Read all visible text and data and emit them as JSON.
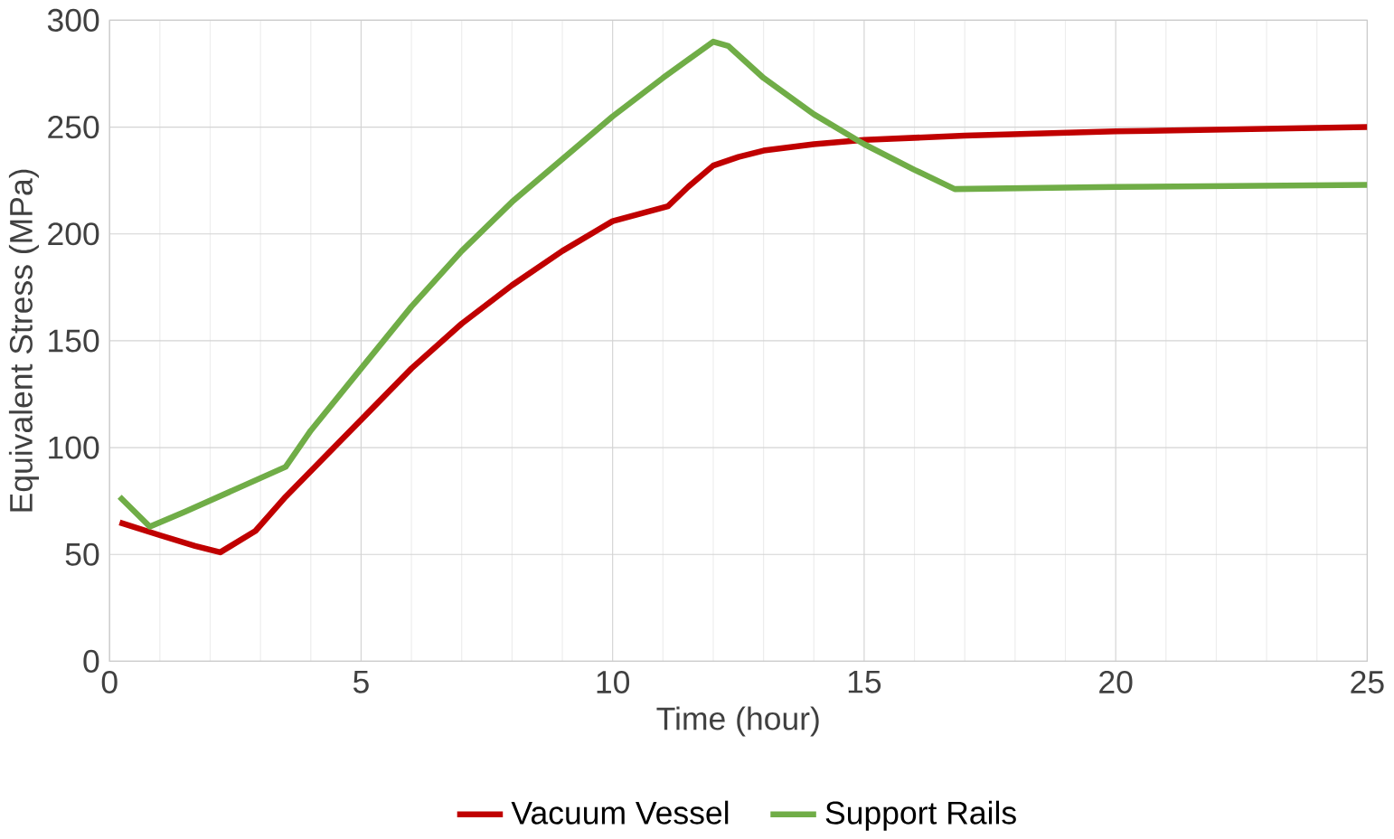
{
  "chart_data": {
    "type": "line",
    "xlabel": "Time (hour)",
    "ylabel": "Equivalent Stress (MPa)",
    "xlim": [
      0,
      25
    ],
    "xticks": [
      0,
      5,
      10,
      15,
      20,
      25
    ],
    "ylim": [
      0,
      300
    ],
    "yticks": [
      0,
      50,
      100,
      150,
      200,
      250,
      300
    ],
    "grid": true,
    "legend": "bottom",
    "marker": "none",
    "line_style": "solid",
    "series": [
      {
        "name": "Vacuum Vessel",
        "color": "#c00000",
        "x": [
          0.2,
          1,
          1.7,
          2.2,
          2.9,
          3.5,
          5,
          6,
          7,
          8,
          9,
          10,
          11.1,
          11.5,
          12,
          12.5,
          13,
          14,
          15,
          17,
          20,
          25
        ],
        "values": [
          65,
          59,
          54,
          51,
          61,
          77,
          113,
          137,
          158,
          176,
          192,
          206,
          213,
          222,
          232,
          236,
          239,
          242,
          244,
          246,
          248,
          250
        ]
      },
      {
        "name": "Support Rails",
        "color": "#70ad47",
        "x": [
          0.2,
          0.8,
          1.5,
          3.5,
          4,
          5,
          6,
          7,
          8,
          9,
          10,
          11,
          12,
          12.3,
          13,
          14,
          15,
          16,
          16.8,
          20,
          25
        ],
        "values": [
          77,
          63,
          70,
          91,
          108,
          137,
          166,
          192,
          215,
          235,
          255,
          273,
          290,
          288,
          273,
          256,
          242,
          230,
          221,
          222,
          223
        ]
      }
    ]
  }
}
